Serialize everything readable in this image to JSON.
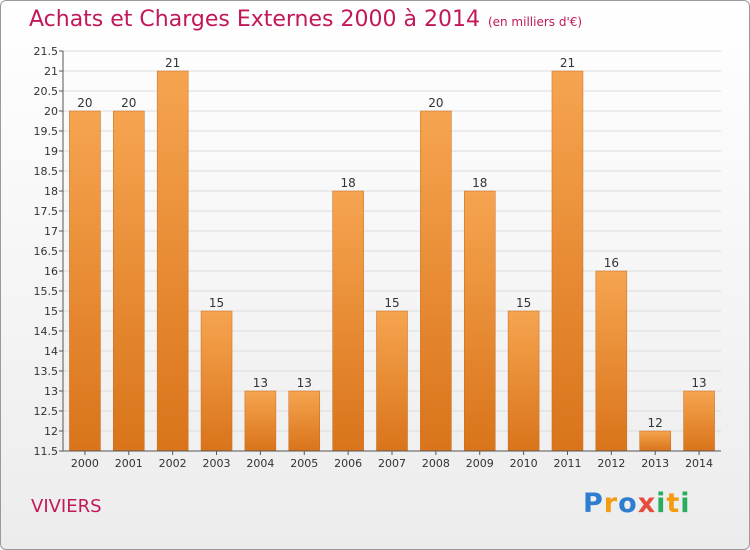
{
  "chart_data": {
    "type": "bar",
    "title": "Achats et Charges Externes 2000 à 2014",
    "subtitle": "(en milliers d'€)",
    "categories": [
      "2000",
      "2001",
      "2002",
      "2003",
      "2004",
      "2005",
      "2006",
      "2007",
      "2008",
      "2009",
      "2010",
      "2011",
      "2012",
      "2013",
      "2014"
    ],
    "values": [
      20,
      20,
      21,
      15,
      13,
      13,
      18,
      15,
      20,
      18,
      15,
      21,
      16,
      12,
      13
    ],
    "ylim": [
      11.5,
      21.5
    ],
    "yticks": [
      "11.5",
      "12",
      "12.5",
      "13",
      "13.5",
      "14",
      "14.5",
      "15",
      "15.5",
      "16",
      "16.5",
      "17",
      "17.5",
      "18",
      "18.5",
      "19",
      "19.5",
      "20",
      "20.5",
      "21",
      "21.5"
    ],
    "grid": true,
    "bar_color": "#f28c28"
  },
  "commune": "VIVIERS",
  "logo": {
    "text": "Proxiti",
    "letters": [
      "P",
      "r",
      "o",
      "x",
      "i",
      "t",
      "i"
    ],
    "colors": [
      "#2e7dd1",
      "#f39c12",
      "#2e7dd1",
      "#e74c3c",
      "#27ae60",
      "#f39c12",
      "#27ae60"
    ]
  }
}
